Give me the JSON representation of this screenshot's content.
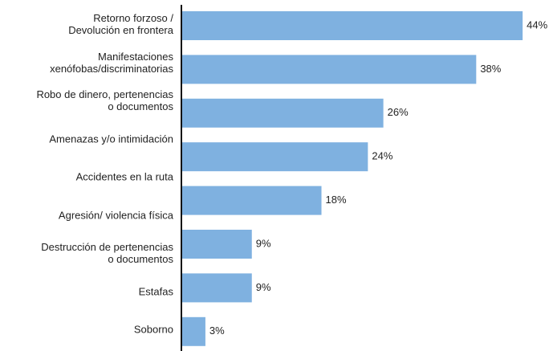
{
  "chart_data": {
    "type": "bar",
    "orientation": "horizontal",
    "categories": [
      "Retorno forzoso /\nDevolución en frontera",
      "Manifestaciones\nxenófobas/discriminatorias",
      "Robo de dinero, pertenencias\no documentos",
      "Amenazas y/o intimidación",
      "Accidentes en la ruta",
      "Agresión/ violencia física",
      "Destrucción de pertenencias\no documentos",
      "Estafas",
      "Soborno"
    ],
    "values": [
      44,
      38,
      26,
      24,
      18,
      null,
      9,
      9,
      3
    ],
    "value_labels": [
      "44%",
      "38%",
      "26%",
      "24%",
      "18%",
      null,
      "9%",
      "9%",
      "3%"
    ],
    "color": "#7fb1e0"
  }
}
